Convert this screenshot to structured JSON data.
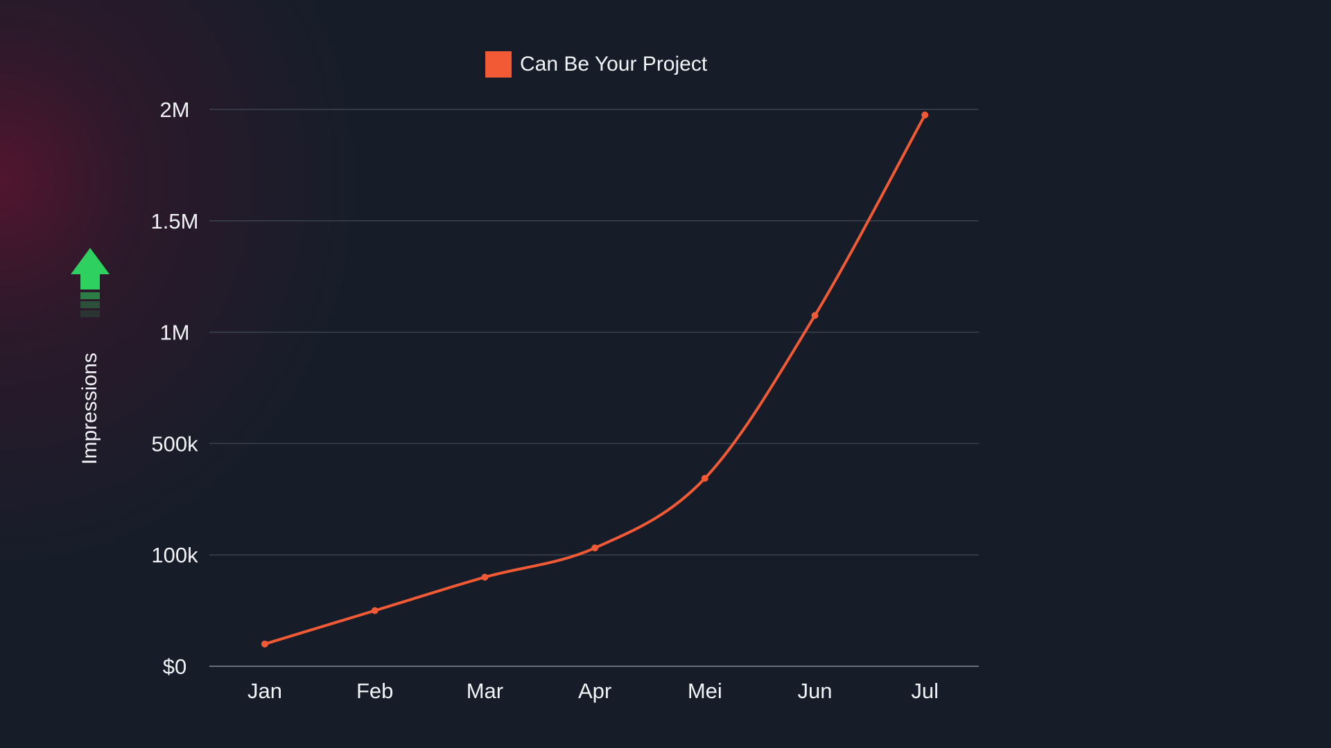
{
  "chart_data": {
    "type": "line",
    "categories": [
      "Jan",
      "Feb",
      "Mar",
      "Apr",
      "Mei",
      "Jun",
      "Jul"
    ],
    "series": [
      {
        "name": "Can Be Your Project",
        "values": [
          20000,
          50000,
          80000,
          125000,
          375000,
          1075000,
          1975000
        ],
        "color": "#f15a35"
      }
    ],
    "ylabel": "Impressions",
    "xlabel": "",
    "title": "",
    "y_ticks": [
      {
        "value": 0,
        "label": "$0"
      },
      {
        "value": 100000,
        "label": "100k"
      },
      {
        "value": 500000,
        "label": "500k"
      },
      {
        "value": 1000000,
        "label": "1M"
      },
      {
        "value": 1500000,
        "label": "1.5M"
      },
      {
        "value": 2000000,
        "label": "2M"
      }
    ],
    "axis_scale": "non-linear (tick-spaced)",
    "ylim": [
      0,
      2000000
    ],
    "grid": true,
    "legend_position": "top-center"
  },
  "colors": {
    "background": "#161d29",
    "line": "#f15a35",
    "grid": "#3a4250",
    "text": "#f1f3f6",
    "arrow": "#2ed15f"
  },
  "icons": {
    "arrow": "up-arrow-icon"
  }
}
